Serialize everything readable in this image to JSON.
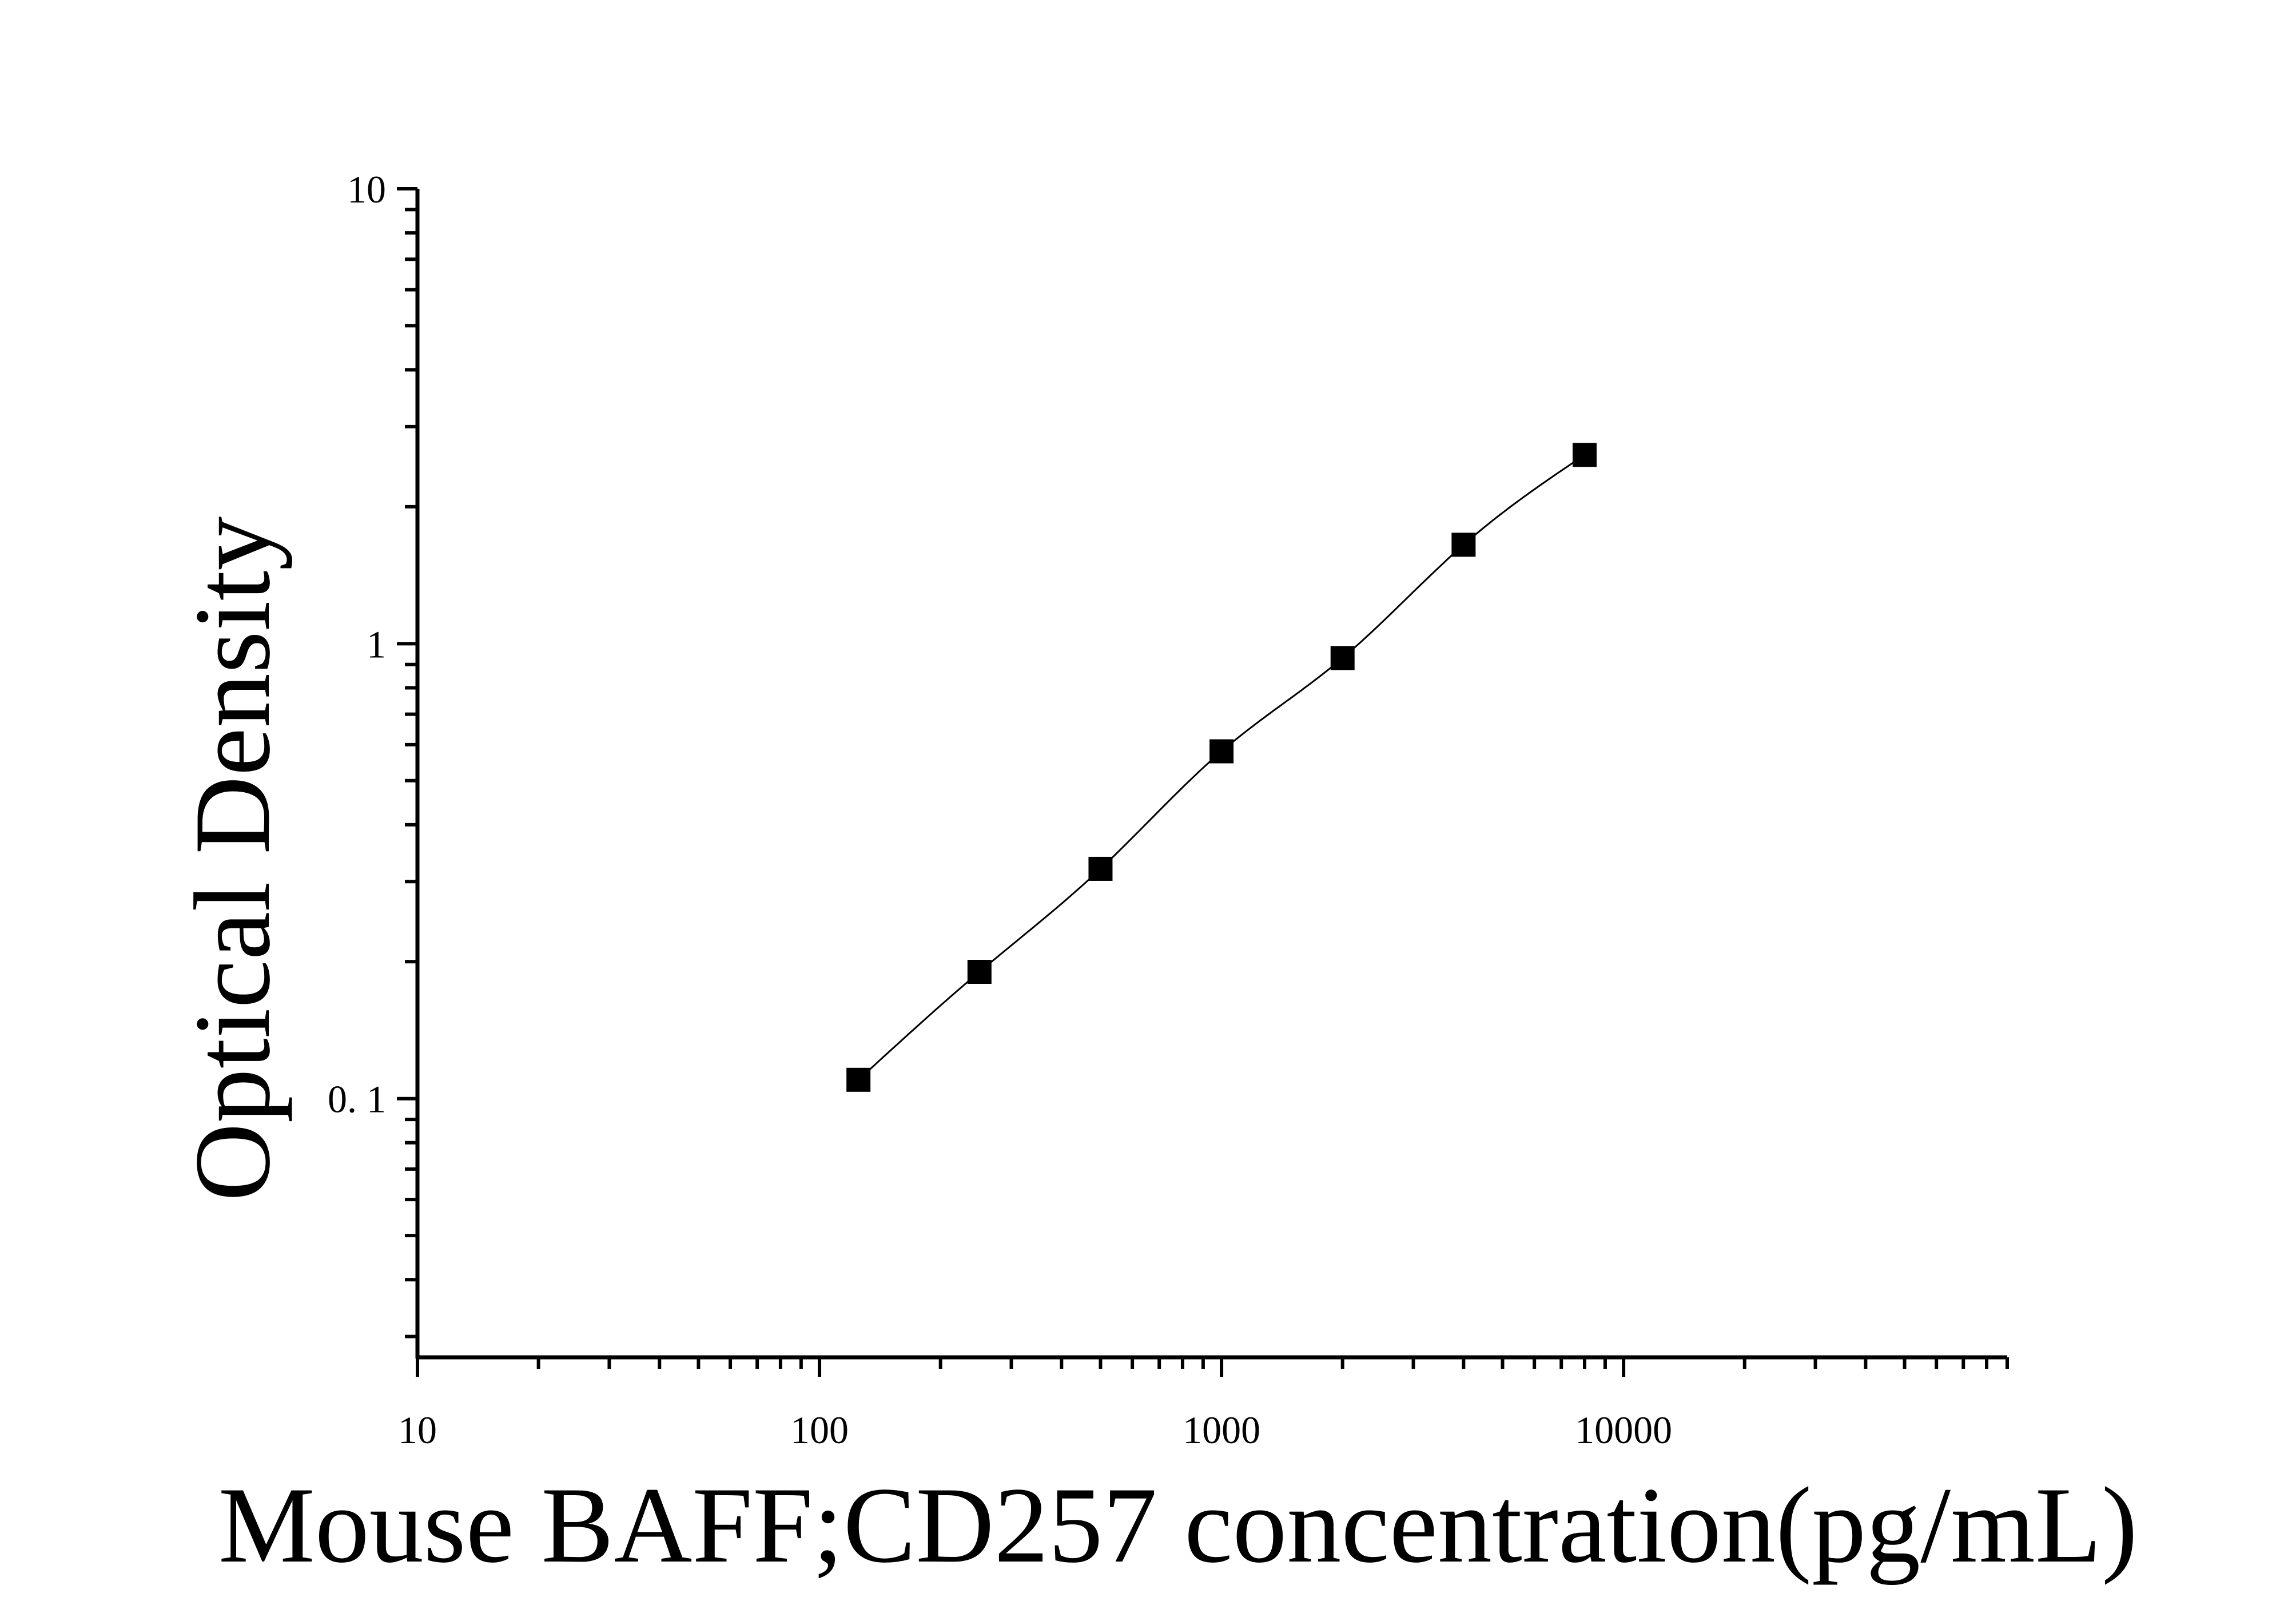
{
  "chart_data": {
    "type": "scatter",
    "xlabel": "Mouse BAFF;CD257 concentration(pg/mL)",
    "ylabel": "Optical Density",
    "x_scale": "log",
    "y_scale": "log",
    "xlim": [
      10,
      90000
    ],
    "ylim": [
      0.027,
      10
    ],
    "x_ticks": [
      10,
      100,
      1000,
      10000
    ],
    "x_tick_labels": [
      "10",
      "100",
      "1000",
      "10000"
    ],
    "y_ticks": [
      0.1,
      1,
      10
    ],
    "y_tick_labels": [
      "0. 1",
      "1",
      "10"
    ],
    "grid": false,
    "legend": "none",
    "marker": "square",
    "color": "#000000",
    "series": [
      {
        "x": [
          125,
          250,
          500,
          1000,
          2000,
          4000,
          8000
        ],
        "y": [
          0.11,
          0.19,
          0.32,
          0.58,
          0.93,
          1.65,
          2.6
        ]
      }
    ],
    "fit_curve": true
  }
}
